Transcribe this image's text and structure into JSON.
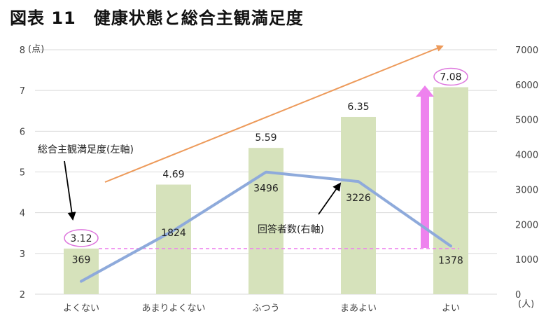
{
  "title": "図表 11　健康状態と総合主観満足度",
  "chart_data": {
    "type": "bar",
    "categories": [
      "よくない",
      "あまりよくない",
      "ふつう",
      "まあよい",
      "よい"
    ],
    "series": [
      {
        "name": "総合主観満足度(左軸)",
        "type": "bar",
        "axis": "left",
        "values": [
          3.12,
          4.69,
          5.59,
          6.35,
          7.08
        ],
        "color": "#d6e2bb"
      },
      {
        "name": "回答者数(右軸)",
        "type": "line",
        "axis": "right",
        "values": [
          369,
          1824,
          3496,
          3226,
          1378
        ],
        "color": "#8eaadb"
      }
    ],
    "left_axis": {
      "unit": "(点)",
      "min": 2,
      "max": 8,
      "ticks": [
        2,
        3,
        4,
        5,
        6,
        7,
        8
      ]
    },
    "right_axis": {
      "unit": "(人)",
      "min": 0,
      "max": 7000,
      "ticks": [
        0,
        1000,
        2000,
        3000,
        4000,
        5000,
        6000,
        7000
      ]
    },
    "baseline_value": 3.12,
    "annotations": {
      "bar_series_label": "総合主観満足度(左軸)",
      "line_series_label": "回答者数(右軸)"
    },
    "colors": {
      "bar": "#d6e2bb",
      "line": "#8eaadb",
      "trend_arrow": "#ed9a5a",
      "up_arrow": "#ee82ee",
      "circle": "#dd77dd",
      "baseline": "#ee82ee",
      "grid": "#d9d9d9"
    },
    "grid": true
  }
}
